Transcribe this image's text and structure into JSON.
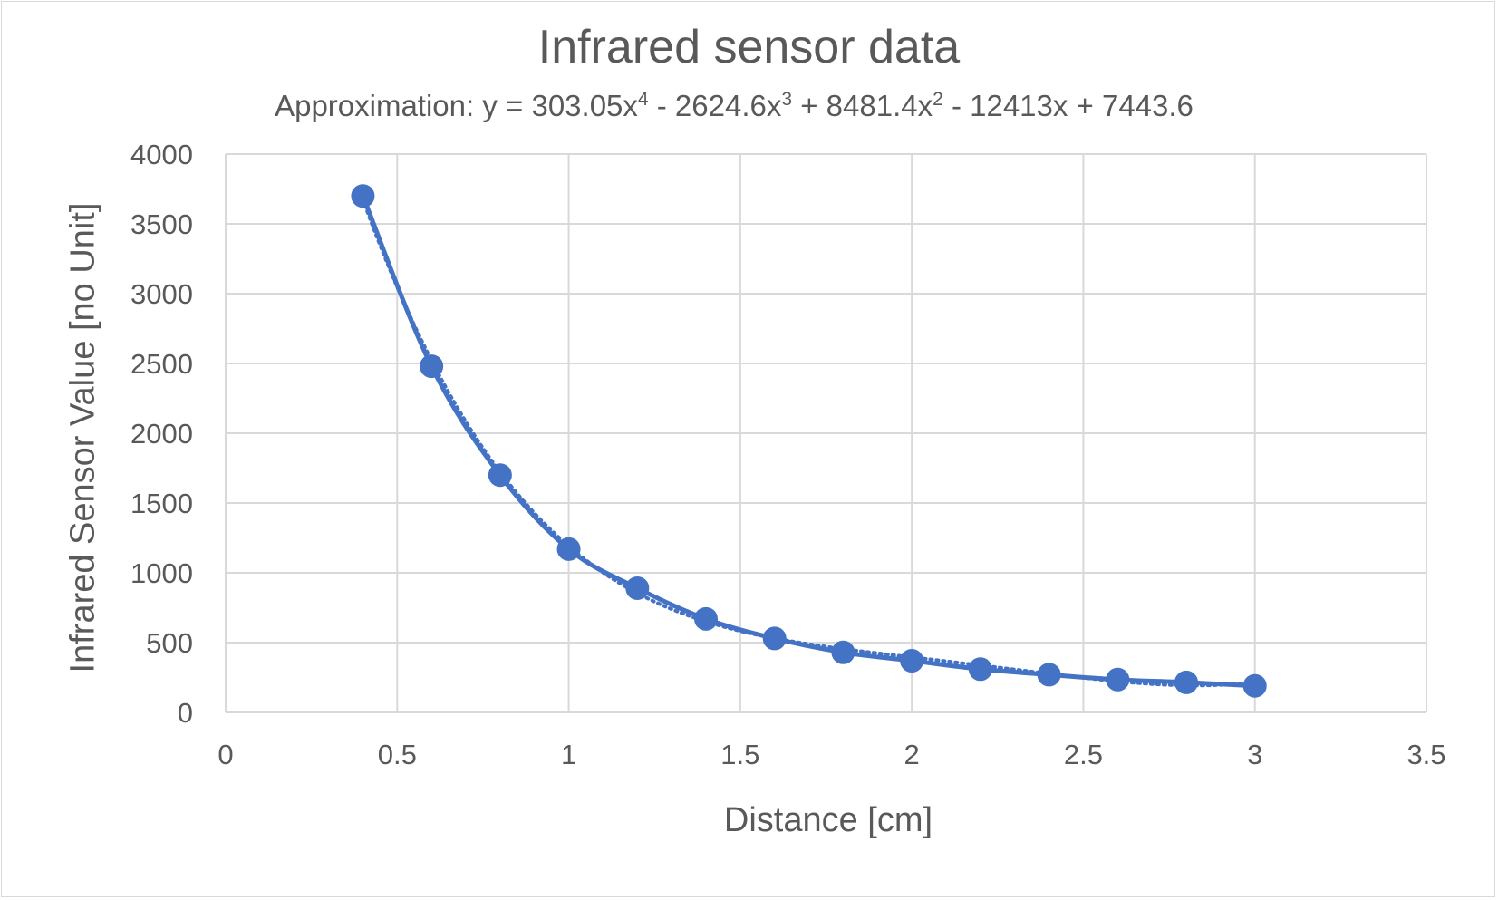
{
  "chart_data": {
    "type": "scatter",
    "title": "Infrared sensor data",
    "subtitle": {
      "prefix": "Approximation: y = 303.05x",
      "exp1": "4",
      "mid1": " - 2624.6x",
      "exp2": "3",
      "mid2": " + 8481.4x",
      "exp3": "2",
      "suffix": " - 12413x + 7443.6"
    },
    "xlabel": "Distance [cm]",
    "ylabel": "Infrared Sensor Value [no Unit]",
    "xlim": [
      0,
      3.5
    ],
    "ylim": [
      0,
      4000
    ],
    "x_ticks": [
      "0",
      "0.5",
      "1",
      "1.5",
      "2",
      "2.5",
      "3",
      "3.5"
    ],
    "y_ticks": [
      "0",
      "500",
      "1000",
      "1500",
      "2000",
      "2500",
      "3000",
      "3500",
      "4000"
    ],
    "grid": true,
    "legend": "none",
    "series": [
      {
        "x": [
          0.4,
          0.6,
          0.8,
          1.0,
          1.2,
          1.4,
          1.6,
          1.8,
          2.0,
          2.2,
          2.4,
          2.6,
          2.8,
          3.0
        ],
        "y": [
          3700,
          2480,
          1700,
          1170,
          890,
          670,
          530,
          430,
          370,
          310,
          270,
          235,
          215,
          190
        ],
        "color": "#4472c4",
        "markers": true,
        "line": "smooth"
      }
    ],
    "trendline": {
      "type": "polynomial",
      "order": 4,
      "coefficients": [
        303.05,
        -2624.6,
        8481.4,
        -12413,
        7443.6
      ],
      "style": "dotted",
      "color": "#4472c4",
      "x_range": [
        0.4,
        3.0
      ]
    }
  }
}
